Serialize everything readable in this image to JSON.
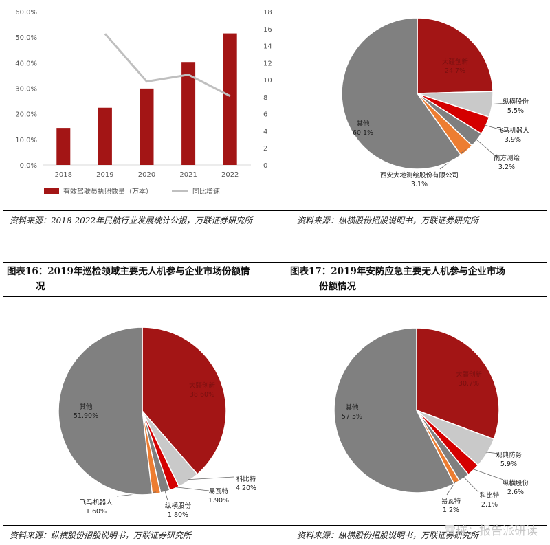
{
  "chart_data": [
    {
      "type": "bar",
      "categories": [
        "2018",
        "2019",
        "2020",
        "2021",
        "2022"
      ],
      "series": [
        {
          "name": "有效驾驶员执照数量（万本）",
          "type": "bar",
          "axis": "left",
          "values": [
            14.5,
            22.4,
            29.9,
            40.3,
            51.5
          ],
          "color": "#a31515"
        },
        {
          "name": "同比增速",
          "type": "line",
          "axis": "right",
          "values": [
            null,
            15.4,
            9.8,
            10.6,
            8.1
          ],
          "color": "#bfbfbf"
        }
      ],
      "y_left": {
        "ticks": [
          "0.0%",
          "10.0%",
          "20.0%",
          "30.0%",
          "40.0%",
          "50.0%",
          "60.0%"
        ],
        "lim": [
          0,
          60
        ]
      },
      "y_right": {
        "ticks": [
          "0",
          "2",
          "4",
          "6",
          "8",
          "10",
          "12",
          "14",
          "16",
          "18"
        ],
        "lim": [
          0,
          18
        ]
      },
      "legend_position": "bottom"
    },
    {
      "type": "pie",
      "slices": [
        {
          "name": "大疆创新",
          "value": 24.7,
          "label": "24.7%",
          "color": "#a31515"
        },
        {
          "name": "纵横股份",
          "value": 5.5,
          "label": "5.5%",
          "color": "#c9c9c9"
        },
        {
          "name": "飞马机器人",
          "value": 3.9,
          "label": "3.9%",
          "color": "#d40000"
        },
        {
          "name": "南方测绘",
          "value": 3.2,
          "label": "3.2%",
          "color": "#7f7f7f"
        },
        {
          "name": "西安大地测绘股份有限公司",
          "value": 3.1,
          "label": "3.1%",
          "color": "#ed7d31"
        },
        {
          "name": "其他",
          "value": 60.1,
          "label": "60.1%",
          "color": "#808080"
        }
      ]
    },
    {
      "type": "pie",
      "title": "图表16：2019年巡检领域主要无人机参与企业市场份额情况",
      "slices": [
        {
          "name": "大疆创新",
          "value": 38.6,
          "label": "38.60%",
          "color": "#a31515"
        },
        {
          "name": "科比特",
          "value": 4.2,
          "label": "4.20%",
          "color": "#c9c9c9"
        },
        {
          "name": "易瓦特",
          "value": 1.9,
          "label": "1.90%",
          "color": "#d40000"
        },
        {
          "name": "纵横股份",
          "value": 1.8,
          "label": "1.80%",
          "color": "#7f7f7f"
        },
        {
          "name": "飞马机器人",
          "value": 1.6,
          "label": "1.60%",
          "color": "#ed7d31"
        },
        {
          "name": "其他",
          "value": 51.9,
          "label": "51.90%",
          "color": "#808080"
        }
      ]
    },
    {
      "type": "pie",
      "title": "图表17：2019年安防应急主要无人机参与企业市场份额情况",
      "slices": [
        {
          "name": "大疆创新",
          "value": 30.7,
          "label": "30.7%",
          "color": "#a31515"
        },
        {
          "name": "观典防务",
          "value": 5.9,
          "label": "5.9%",
          "color": "#c9c9c9"
        },
        {
          "name": "纵横股份",
          "value": 2.6,
          "label": "2.6%",
          "color": "#d40000"
        },
        {
          "name": "科比特",
          "value": 2.1,
          "label": "2.1%",
          "color": "#7f7f7f"
        },
        {
          "name": "易瓦特",
          "value": 1.2,
          "label": "1.2%",
          "color": "#ed7d31"
        },
        {
          "name": "其他",
          "value": 57.5,
          "label": "57.5%",
          "color": "#808080"
        }
      ]
    }
  ],
  "text": {
    "source1": "资料来源：2018-2022年民航行业发展统计公报，万联证券研究所",
    "source2": "资料来源：纵横股份招股说明书，万联证券研究所",
    "source3": "资料来源：纵横股份招股说明书，万联证券研究所",
    "source4": "资料来源：纵横股份招股说明书，万联证券研究所",
    "caption16_line1": "图表16：2019年巡检领域主要无人机参与企业市场份额情",
    "caption16_line2": "况",
    "caption17_line1": "图表17：2019年安防应急主要无人机参与企业市场",
    "caption17_line2": "份额情况",
    "watermark": "雪球：报告派研读"
  }
}
